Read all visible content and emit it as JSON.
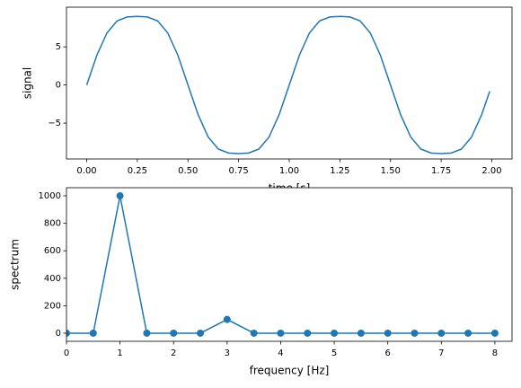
{
  "chart_data": [
    {
      "type": "line",
      "xlabel": "time [s]",
      "ylabel": "signal",
      "x": [
        0,
        0.05,
        0.1,
        0.15,
        0.2,
        0.25,
        0.3,
        0.35,
        0.4,
        0.45,
        0.5,
        0.55,
        0.6,
        0.65,
        0.7,
        0.75,
        0.8,
        0.85,
        0.9,
        0.95,
        1,
        1.05,
        1.1,
        1.15,
        1.2,
        1.25,
        1.3,
        1.35,
        1.4,
        1.45,
        1.5,
        1.55,
        1.6,
        1.65,
        1.7,
        1.75,
        1.8,
        1.85,
        1.9,
        1.95,
        1.99
      ],
      "values": [
        0,
        3.9,
        6.83,
        8.4,
        8.92,
        9,
        8.92,
        8.4,
        6.83,
        3.9,
        0,
        -3.9,
        -6.83,
        -8.4,
        -8.92,
        -9,
        -8.92,
        -8.4,
        -6.83,
        -3.9,
        0,
        3.9,
        6.83,
        8.4,
        8.92,
        9,
        8.92,
        8.4,
        6.83,
        3.9,
        0,
        -3.9,
        -6.83,
        -8.4,
        -8.92,
        -9,
        -8.92,
        -8.4,
        -6.83,
        -3.9,
        -0.82
      ],
      "color": "#1f77b4",
      "markers": false,
      "xlim": [
        -0.1,
        2.1
      ],
      "ylim": [
        -9.7,
        10.2
      ],
      "xticks": [
        {
          "value": 0,
          "label": "0.00"
        },
        {
          "value": 0.25,
          "label": "0.25"
        },
        {
          "value": 0.5,
          "label": "0.50"
        },
        {
          "value": 0.75,
          "label": "0.75"
        },
        {
          "value": 1,
          "label": "1.00"
        },
        {
          "value": 1.25,
          "label": "1.25"
        },
        {
          "value": 1.5,
          "label": "1.50"
        },
        {
          "value": 1.75,
          "label": "1.75"
        },
        {
          "value": 2,
          "label": "2.00"
        }
      ],
      "yticks": [
        {
          "value": -5,
          "label": "−5"
        },
        0,
        5
      ]
    },
    {
      "type": "line",
      "xlabel": "frequency [Hz]",
      "ylabel": "spectrum",
      "x": [
        0,
        0.5,
        1,
        1.5,
        2,
        2.5,
        3,
        3.5,
        4,
        4.5,
        5,
        5.5,
        6,
        6.5,
        7,
        7.5,
        8
      ],
      "values": [
        0,
        0,
        1000,
        0,
        0,
        0,
        100,
        0,
        0,
        0,
        0,
        0,
        0,
        0,
        0,
        0,
        0
      ],
      "color": "#1f77b4",
      "markers": true,
      "xlim": [
        0,
        8.32
      ],
      "ylim": [
        -59,
        1059
      ],
      "xticks": [
        0,
        1,
        2,
        3,
        4,
        5,
        6,
        7,
        8
      ],
      "yticks": [
        0,
        200,
        400,
        600,
        800,
        1000
      ]
    }
  ]
}
